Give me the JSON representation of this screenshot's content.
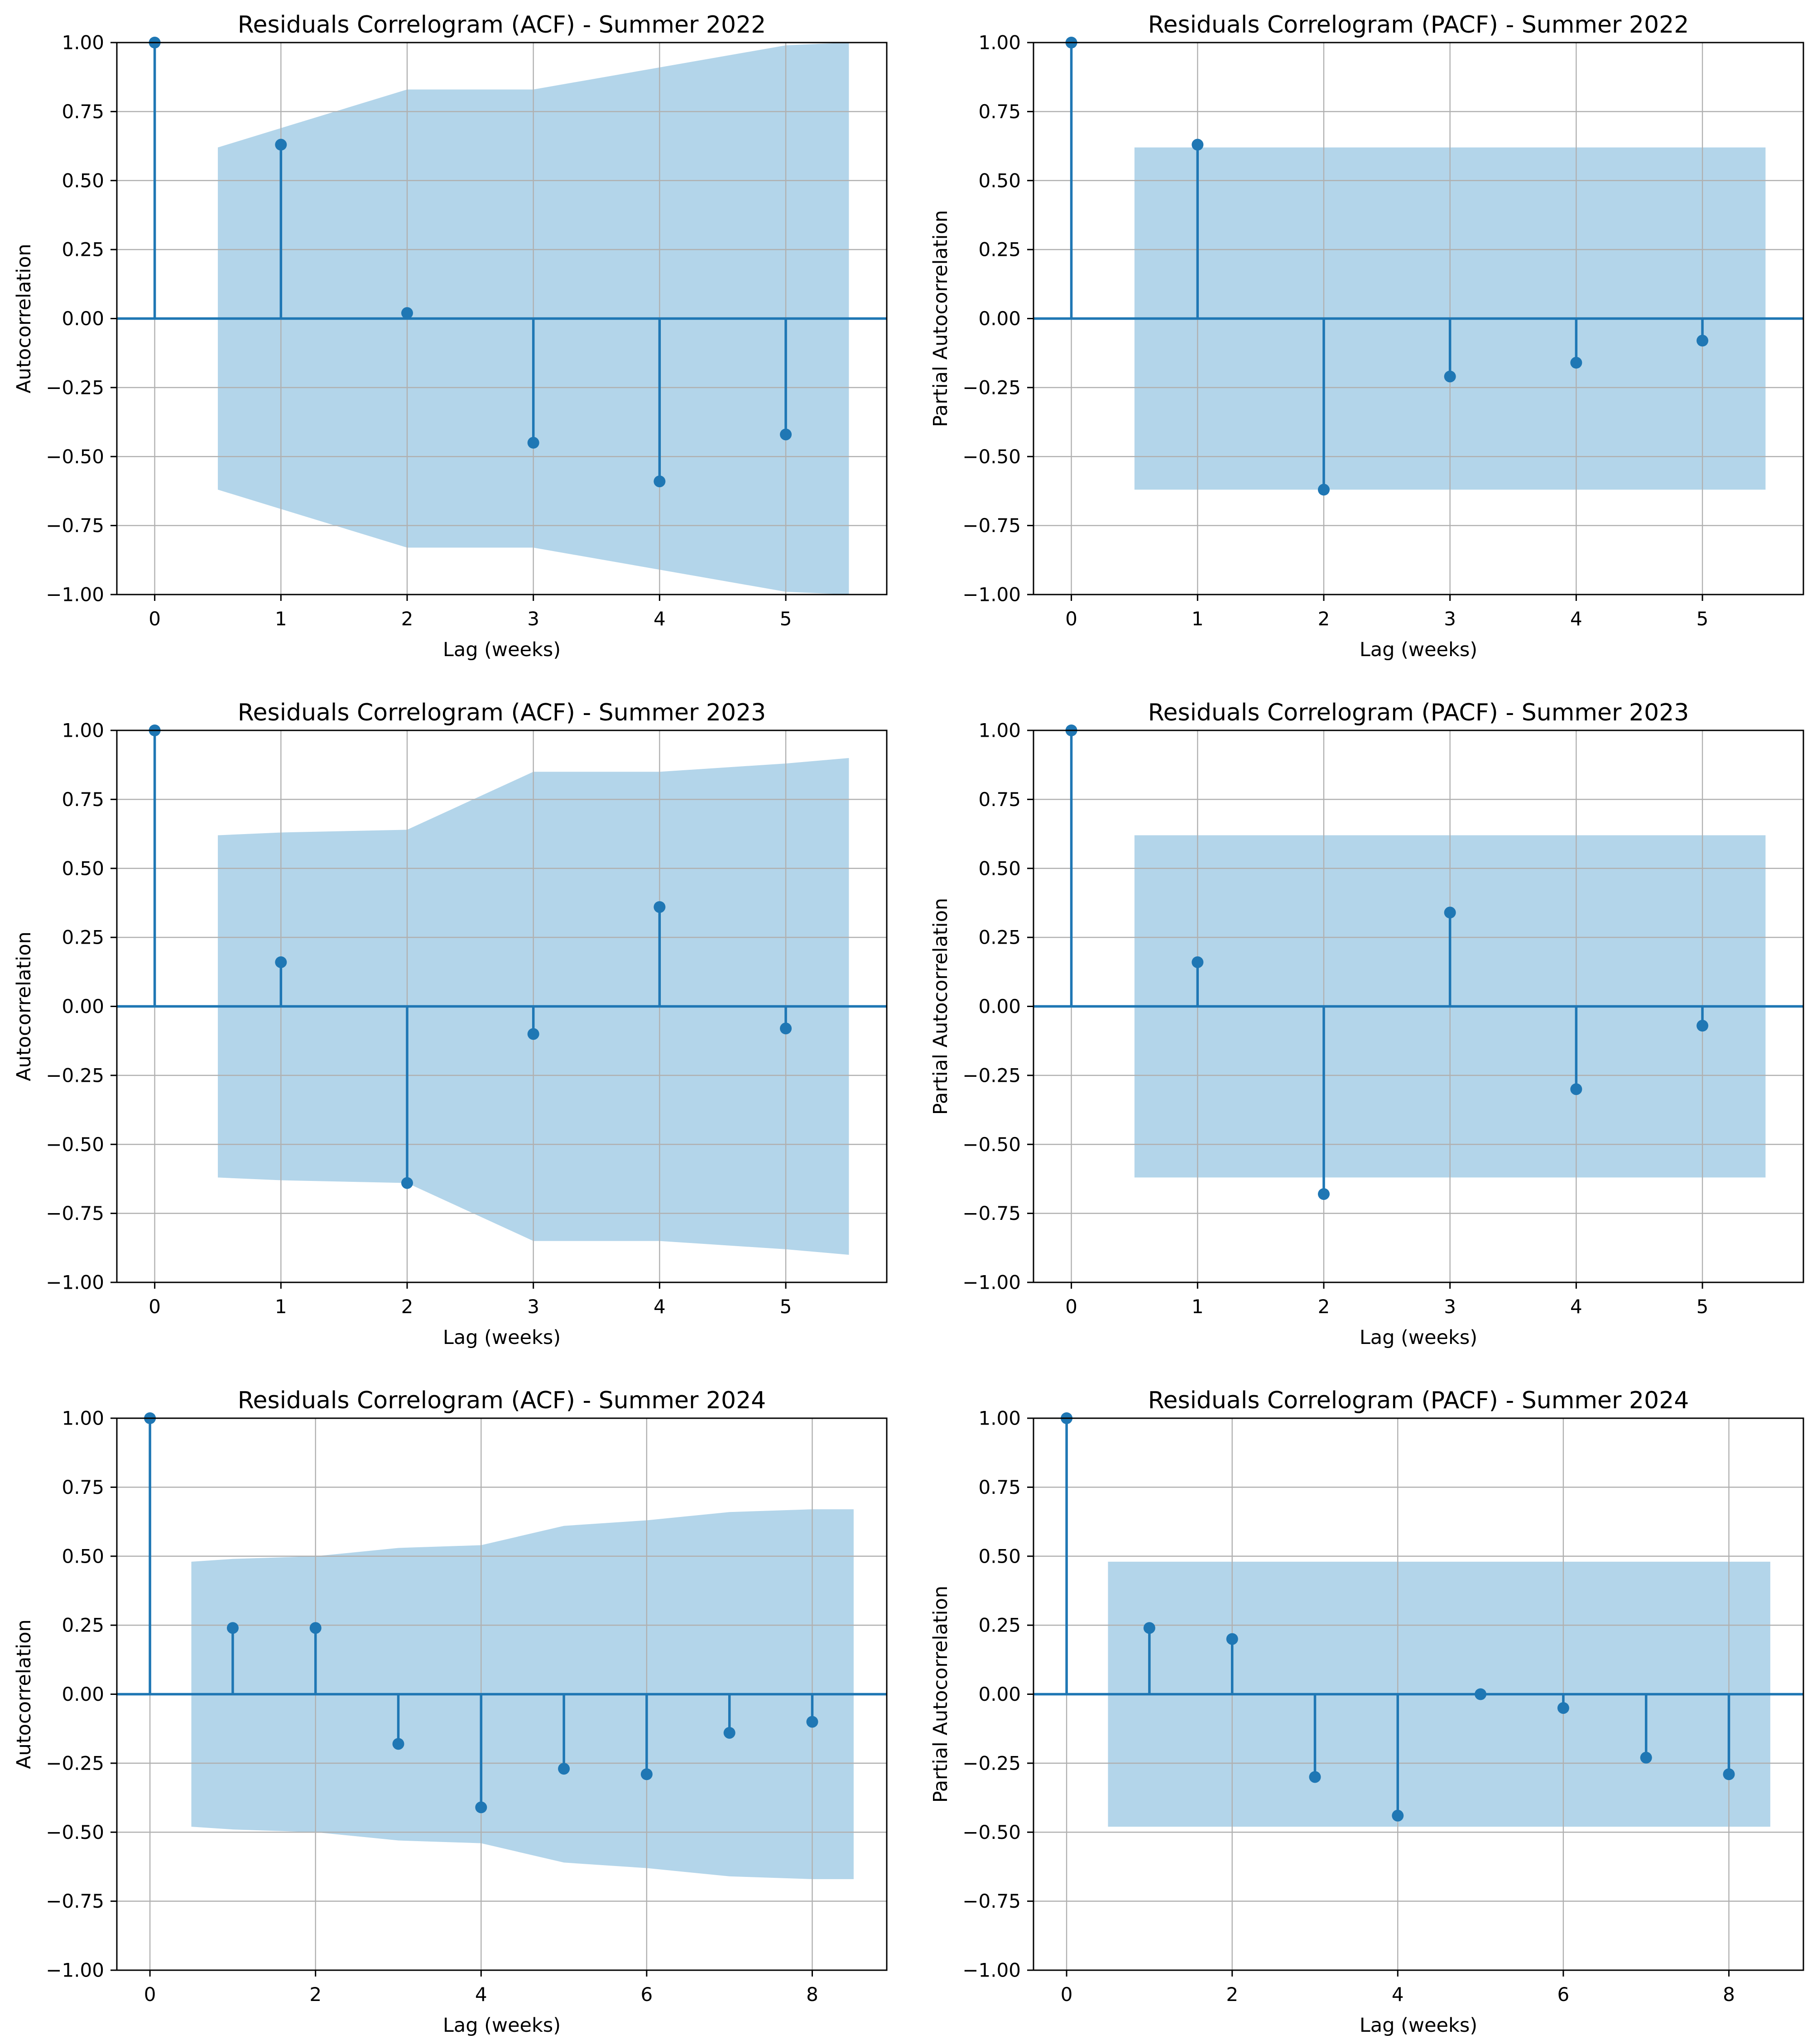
{
  "colors": {
    "stem": "#1f77b4",
    "marker": "#1f77b4",
    "band": "#b3d5ea",
    "grid": "#b0b0b0",
    "axes": "#000000"
  },
  "chart_data": [
    {
      "type": "stem",
      "title": "Residuals Correlogram (ACF) - Summer 2022",
      "xlabel": "Lag (weeks)",
      "ylabel": "Autocorrelation",
      "ylim": [
        -1,
        1
      ],
      "xlim": [
        -0.3,
        5.8
      ],
      "xticks": [
        0,
        1,
        2,
        3,
        4,
        5
      ],
      "yticks": [
        1.0,
        0.75,
        0.5,
        0.25,
        0.0,
        -0.25,
        -0.5,
        -0.75,
        -1.0
      ],
      "ytick_labels": [
        "1.00",
        "0.75",
        "0.50",
        "0.25",
        "0.00",
        "−0.25",
        "−0.50",
        "−0.75",
        "−1.00"
      ],
      "lags": [
        0,
        1,
        2,
        3,
        4,
        5
      ],
      "values": [
        1.0,
        0.63,
        0.02,
        -0.45,
        -0.59,
        -0.42
      ],
      "confint": {
        "x": [
          0.5,
          1,
          2,
          3,
          4,
          5,
          5.5
        ],
        "upper": [
          0.62,
          0.69,
          0.83,
          0.83,
          0.91,
          0.99,
          1.0
        ]
      },
      "grid": true
    },
    {
      "type": "stem",
      "title": "Residuals Correlogram (PACF) - Summer 2022",
      "xlabel": "Lag (weeks)",
      "ylabel": "Partial Autocorrelation",
      "ylim": [
        -1,
        1
      ],
      "xlim": [
        -0.3,
        5.8
      ],
      "xticks": [
        0,
        1,
        2,
        3,
        4,
        5
      ],
      "yticks": [
        1.0,
        0.75,
        0.5,
        0.25,
        0.0,
        -0.25,
        -0.5,
        -0.75,
        -1.0
      ],
      "ytick_labels": [
        "1.00",
        "0.75",
        "0.50",
        "0.25",
        "0.00",
        "−0.25",
        "−0.50",
        "−0.75",
        "−1.00"
      ],
      "lags": [
        0,
        1,
        2,
        3,
        4,
        5
      ],
      "values": [
        1.0,
        0.63,
        -0.62,
        -0.21,
        -0.16,
        -0.08
      ],
      "confint": {
        "x": [
          0.5,
          5.5
        ],
        "upper": [
          0.62,
          0.62
        ]
      },
      "grid": true
    },
    {
      "type": "stem",
      "title": "Residuals Correlogram (ACF) - Summer 2023",
      "xlabel": "Lag (weeks)",
      "ylabel": "Autocorrelation",
      "ylim": [
        -1,
        1
      ],
      "xlim": [
        -0.3,
        5.8
      ],
      "xticks": [
        0,
        1,
        2,
        3,
        4,
        5
      ],
      "yticks": [
        1.0,
        0.75,
        0.5,
        0.25,
        0.0,
        -0.25,
        -0.5,
        -0.75,
        -1.0
      ],
      "ytick_labels": [
        "1.00",
        "0.75",
        "0.50",
        "0.25",
        "0.00",
        "−0.25",
        "−0.50",
        "−0.75",
        "−1.00"
      ],
      "lags": [
        0,
        1,
        2,
        3,
        4,
        5
      ],
      "values": [
        1.0,
        0.16,
        -0.64,
        -0.1,
        0.36,
        -0.08
      ],
      "confint": {
        "x": [
          0.5,
          1,
          2,
          3,
          4,
          5,
          5.5
        ],
        "upper": [
          0.62,
          0.63,
          0.64,
          0.85,
          0.85,
          0.88,
          0.9
        ]
      },
      "grid": true
    },
    {
      "type": "stem",
      "title": "Residuals Correlogram (PACF) - Summer 2023",
      "xlabel": "Lag (weeks)",
      "ylabel": "Partial Autocorrelation",
      "ylim": [
        -1,
        1
      ],
      "xlim": [
        -0.3,
        5.8
      ],
      "xticks": [
        0,
        1,
        2,
        3,
        4,
        5
      ],
      "yticks": [
        1.0,
        0.75,
        0.5,
        0.25,
        0.0,
        -0.25,
        -0.5,
        -0.75,
        -1.0
      ],
      "ytick_labels": [
        "1.00",
        "0.75",
        "0.50",
        "0.25",
        "0.00",
        "−0.25",
        "−0.50",
        "−0.75",
        "−1.00"
      ],
      "lags": [
        0,
        1,
        2,
        3,
        4,
        5
      ],
      "values": [
        1.0,
        0.16,
        -0.68,
        0.34,
        -0.3,
        -0.07
      ],
      "confint": {
        "x": [
          0.5,
          5.5
        ],
        "upper": [
          0.62,
          0.62
        ]
      },
      "grid": true
    },
    {
      "type": "stem",
      "title": "Residuals Correlogram (ACF) - Summer 2024",
      "xlabel": "Lag (weeks)",
      "ylabel": "Autocorrelation",
      "ylim": [
        -1,
        1
      ],
      "xlim": [
        -0.4,
        8.9
      ],
      "xticks": [
        0,
        2,
        4,
        6,
        8
      ],
      "yticks": [
        1.0,
        0.75,
        0.5,
        0.25,
        0.0,
        -0.25,
        -0.5,
        -0.75,
        -1.0
      ],
      "ytick_labels": [
        "1.00",
        "0.75",
        "0.50",
        "0.25",
        "0.00",
        "−0.25",
        "−0.50",
        "−0.75",
        "−1.00"
      ],
      "lags": [
        0,
        1,
        2,
        3,
        4,
        5,
        6,
        7,
        8
      ],
      "values": [
        1.0,
        0.24,
        0.24,
        -0.18,
        -0.41,
        -0.27,
        -0.29,
        -0.14,
        -0.1
      ],
      "confint": {
        "x": [
          0.5,
          1,
          2,
          3,
          4,
          5,
          6,
          7,
          8,
          8.5
        ],
        "upper": [
          0.48,
          0.49,
          0.5,
          0.53,
          0.54,
          0.61,
          0.63,
          0.66,
          0.67,
          0.67
        ]
      },
      "grid": true
    },
    {
      "type": "stem",
      "title": "Residuals Correlogram (PACF) - Summer 2024",
      "xlabel": "Lag (weeks)",
      "ylabel": "Partial Autocorrelation",
      "ylim": [
        -1,
        1
      ],
      "xlim": [
        -0.4,
        8.9
      ],
      "xticks": [
        0,
        2,
        4,
        6,
        8
      ],
      "yticks": [
        1.0,
        0.75,
        0.5,
        0.25,
        0.0,
        -0.25,
        -0.5,
        -0.75,
        -1.0
      ],
      "ytick_labels": [
        "1.00",
        "0.75",
        "0.50",
        "0.25",
        "0.00",
        "−0.25",
        "−0.50",
        "−0.75",
        "−1.00"
      ],
      "lags": [
        0,
        1,
        2,
        3,
        4,
        5,
        6,
        7,
        8
      ],
      "values": [
        1.0,
        0.24,
        0.2,
        -0.3,
        -0.44,
        0.0,
        -0.05,
        -0.23,
        -0.29
      ],
      "confint": {
        "x": [
          0.5,
          8.5
        ],
        "upper": [
          0.48,
          0.48
        ]
      },
      "grid": true
    }
  ]
}
